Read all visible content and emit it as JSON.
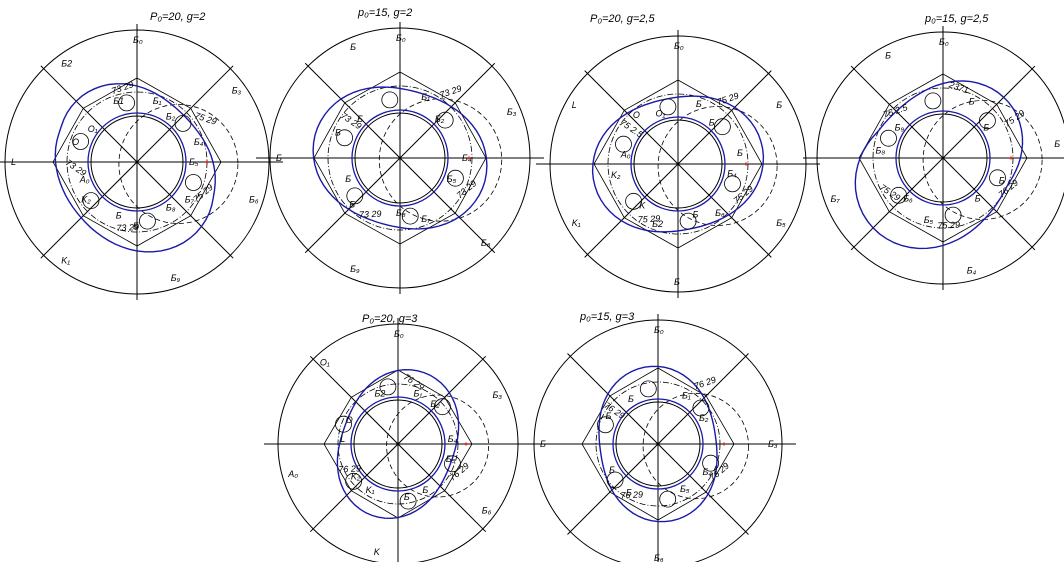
{
  "colors": {
    "ink": "#000000",
    "curve": "#1a1aa8",
    "marker": "#d33"
  },
  "diagrams": [
    {
      "id": "d1",
      "title": "P₀=20, g=2",
      "labels": [
        "Б₀",
        "Б₁",
        "Б₂",
        "Б₃",
        "Б₄",
        "Б₅",
        "Б₆",
        "Б₇",
        "Б₈",
        "Б₉",
        "Б",
        "Б",
        "K₁",
        "K₂",
        "A₀",
        "L",
        "O",
        "O₁",
        "Б2",
        "Б1"
      ],
      "angles": [
        "75 29",
        "73 29",
        "73 29",
        "73 29",
        "75 29"
      ]
    },
    {
      "id": "d2",
      "title": "p₀=15, g=2",
      "labels": [
        "Б₀",
        "Б₁",
        "Б₂",
        "Б₃",
        "Б₄",
        "Б₅",
        "Б₆",
        "Б₇",
        "Б₈",
        "Б₉",
        "Б",
        "Б",
        "Б",
        "Б",
        "Б",
        "Б"
      ],
      "angles": [
        "73 29",
        "73 29",
        "73 29",
        "73 29"
      ]
    },
    {
      "id": "d3",
      "title": "P₀=20, g=2,5",
      "labels": [
        "Б₀",
        "Б",
        "Б",
        "Б",
        "Б",
        "Б₄",
        "Б₅",
        "Б₆",
        "Б",
        "Б",
        "Б2",
        "K",
        "K₁",
        "K₂",
        "A₀",
        "L",
        "O",
        "O₁"
      ],
      "angles": [
        "75 29",
        "75 29",
        "75 2.5",
        "75 29"
      ]
    },
    {
      "id": "d4",
      "title": "p₀=15, g=2,5",
      "labels": [
        "Б₀",
        "Б",
        "Б",
        "Б",
        "Б",
        "Б",
        "Б₄",
        "Б₅",
        "Б₆",
        "Б₇",
        "Б₈",
        "Б₉",
        "Б"
      ],
      "angles": [
        "76 29",
        "75 29",
        "75 29",
        "75 2.5",
        "2371",
        "75 29"
      ]
    },
    {
      "id": "d5",
      "title": "P₀=20, g=3",
      "labels": [
        "Б₀",
        "Б₁",
        "Б₂",
        "Б₃",
        "Б₄",
        "Б₅",
        "Б₆",
        "Б",
        "Б",
        "K",
        "K₁",
        "K₂",
        "A₀",
        "L",
        "O",
        "O₁",
        "Б2"
      ],
      "angles": [
        "76 29",
        "76 29",
        "76 29"
      ]
    },
    {
      "id": "d6",
      "title": "p₀=15, g=3",
      "labels": [
        "Б₀",
        "Б₁",
        "Б₂",
        "Б₃",
        "Б₄",
        "Б₅",
        "Б₆",
        "Б",
        "Б",
        "Б",
        "Б",
        "Б"
      ],
      "angles": [
        "76 29",
        "76 29",
        "76 29",
        "76 29"
      ]
    }
  ]
}
